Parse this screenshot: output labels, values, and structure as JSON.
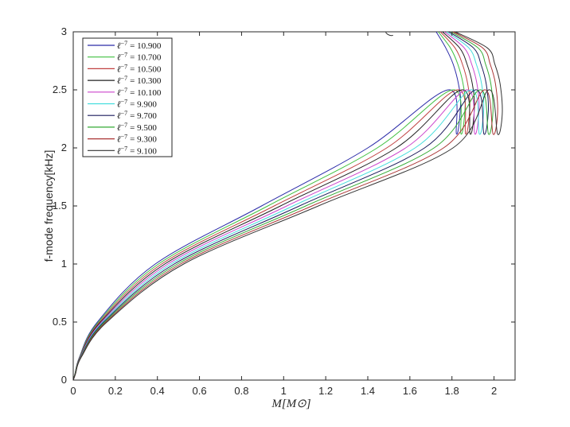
{
  "chart_data": {
    "type": "line",
    "title": "",
    "xlabel": "M[M_⊙]",
    "xlabel_math": "M[M⊙]",
    "ylabel": "f-mode frequency[kHz]",
    "xlim": [
      0,
      2.1
    ],
    "ylim": [
      0,
      3
    ],
    "xticks": [
      0,
      0.2,
      0.4,
      0.6,
      0.8,
      1,
      1.2,
      1.4,
      1.6,
      1.8,
      2
    ],
    "xtick_labels": [
      "0",
      "0.2",
      "0.4",
      "0.6",
      "0.8",
      "1",
      "1.2",
      "1.4",
      "1.6",
      "1.8",
      "2"
    ],
    "yticks": [
      0,
      0.5,
      1,
      1.5,
      2,
      2.5,
      3
    ],
    "ytick_labels": [
      "0",
      "0.5",
      "1",
      "1.5",
      "2",
      "2.5",
      "3"
    ],
    "grid": false,
    "legend_position": "top-left",
    "y_at_points": [
      0.05,
      0.2,
      0.5,
      1.0,
      1.5,
      2.0,
      2.5
    ],
    "series": [
      {
        "name": "ℓ^{-7} = 10.900",
        "label_base": "ℓ",
        "label_exp": "−7",
        "label_value": "= 10.900",
        "color": "#2b2ba8",
        "x_at_y": [
          0.008,
          0.03,
          0.115,
          0.39,
          0.895,
          1.4,
          1.782
        ],
        "x_max": 1.841,
        "y_at_x_max": 2.38,
        "y_end": 3.0,
        "x_end": 1.725
      },
      {
        "name": "ℓ^{-7} = 10.700",
        "label_base": "ℓ",
        "label_exp": "−7",
        "label_value": "= 10.700",
        "color": "#40c040",
        "x_at_y": [
          0.008,
          0.031,
          0.12,
          0.405,
          0.925,
          1.445,
          1.803
        ],
        "x_max": 1.863,
        "y_at_x_max": 2.37,
        "y_end": 3.0,
        "x_end": 1.735
      },
      {
        "name": "ℓ^{-7} = 10.500",
        "label_base": "ℓ",
        "label_exp": "−7",
        "label_value": "= 10.500",
        "color": "#c04040",
        "x_at_y": [
          0.008,
          0.032,
          0.125,
          0.42,
          0.955,
          1.49,
          1.825
        ],
        "x_max": 1.885,
        "y_at_x_max": 2.36,
        "y_end": 3.0,
        "x_end": 1.745
      },
      {
        "name": "ℓ^{-7} = 10.300",
        "label_base": "ℓ",
        "label_exp": "−7",
        "label_value": "= 10.300",
        "color": "#222222",
        "x_at_y": [
          0.008,
          0.033,
          0.13,
          0.435,
          0.985,
          1.535,
          1.846
        ],
        "x_max": 1.907,
        "y_at_x_max": 2.35,
        "y_end": 3.0,
        "x_end": 1.755
      },
      {
        "name": "ℓ^{-7} = 10.100",
        "label_base": "ℓ",
        "label_exp": "−7",
        "label_value": "= 10.100",
        "color": "#cc44cc",
        "x_at_y": [
          0.009,
          0.034,
          0.135,
          0.45,
          1.015,
          1.58,
          1.868
        ],
        "x_max": 1.929,
        "y_at_x_max": 2.34,
        "y_end": 3.0,
        "x_end": 1.765
      },
      {
        "name": "ℓ^{-7} = 9.900",
        "label_base": "ℓ",
        "label_exp": "−7",
        "label_value": "= 9.900",
        "color": "#44dddd",
        "x_at_y": [
          0.009,
          0.035,
          0.14,
          0.465,
          1.045,
          1.625,
          1.889
        ],
        "x_max": 1.951,
        "y_at_x_max": 2.33,
        "y_end": 3.0,
        "x_end": 1.775
      },
      {
        "name": "ℓ^{-7} = 9.700",
        "label_base": "ℓ",
        "label_exp": "−7",
        "label_value": "= 9.700",
        "color": "#1a1a5c",
        "x_at_y": [
          0.009,
          0.036,
          0.145,
          0.48,
          1.075,
          1.67,
          1.911
        ],
        "x_max": 1.973,
        "y_at_x_max": 2.32,
        "y_end": 3.0,
        "x_end": 1.785
      },
      {
        "name": "ℓ^{-7} = 9.500",
        "label_base": "ℓ",
        "label_exp": "−7",
        "label_value": "= 9.500",
        "color": "#33aa33",
        "x_at_y": [
          0.009,
          0.037,
          0.15,
          0.495,
          1.105,
          1.715,
          1.932
        ],
        "x_max": 1.995,
        "y_at_x_max": 2.31,
        "y_end": 3.0,
        "x_end": 1.795
      },
      {
        "name": "ℓ^{-7} = 9.300",
        "label_base": "ℓ",
        "label_exp": "−7",
        "label_value": "= 9.300",
        "color": "#aa3333",
        "x_at_y": [
          0.01,
          0.038,
          0.155,
          0.51,
          1.135,
          1.76,
          1.954
        ],
        "x_max": 2.017,
        "y_at_x_max": 2.3,
        "y_end": 3.0,
        "x_end": 1.805
      },
      {
        "name": "ℓ^{-7} = 9.100",
        "label_base": "ℓ",
        "label_exp": "−7",
        "label_value": "= 9.100",
        "color": "#333333",
        "x_at_y": [
          0.01,
          0.039,
          0.16,
          0.525,
          1.165,
          1.805,
          1.975
        ],
        "x_max": 2.039,
        "y_at_x_max": 2.29,
        "y_end": 3.0,
        "x_end": 1.815
      }
    ]
  }
}
